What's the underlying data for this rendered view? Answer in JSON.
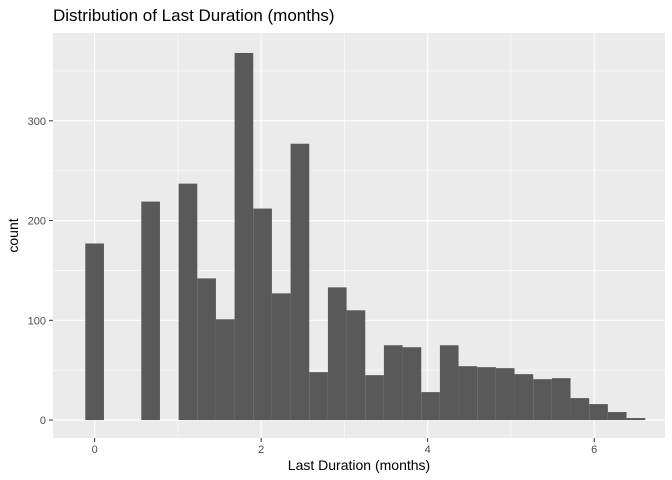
{
  "chart_data": {
    "type": "bar",
    "title": "Distribution of Last Duration (months)",
    "xlabel": "Last Duration (months)",
    "ylabel": "count",
    "xlim": [
      -0.5,
      6.85
    ],
    "ylim": [
      -18,
      388
    ],
    "x_ticks": [
      0,
      2,
      4,
      6
    ],
    "y_ticks": [
      0,
      100,
      200,
      300
    ],
    "x_tick_labels": [
      "0",
      "2",
      "4",
      "6"
    ],
    "y_tick_labels": [
      "0",
      "100",
      "200",
      "300"
    ],
    "bin_width": 0.2241,
    "bins": [
      {
        "x0": -0.1121,
        "x1": 0.1121,
        "count": 177
      },
      {
        "x0": 0.1121,
        "x1": 0.3362,
        "count": 0
      },
      {
        "x0": 0.3362,
        "x1": 0.5603,
        "count": 0
      },
      {
        "x0": 0.5603,
        "x1": 0.7845,
        "count": 219
      },
      {
        "x0": 0.7845,
        "x1": 1.0086,
        "count": 0
      },
      {
        "x0": 1.0086,
        "x1": 1.2328,
        "count": 237
      },
      {
        "x0": 1.2328,
        "x1": 1.4569,
        "count": 142
      },
      {
        "x0": 1.4569,
        "x1": 1.681,
        "count": 101
      },
      {
        "x0": 1.681,
        "x1": 1.9052,
        "count": 368
      },
      {
        "x0": 1.9052,
        "x1": 2.1293,
        "count": 212
      },
      {
        "x0": 2.1293,
        "x1": 2.3534,
        "count": 127
      },
      {
        "x0": 2.3534,
        "x1": 2.5776,
        "count": 277
      },
      {
        "x0": 2.5776,
        "x1": 2.8017,
        "count": 48
      },
      {
        "x0": 2.8017,
        "x1": 3.0259,
        "count": 133
      },
      {
        "x0": 3.0259,
        "x1": 3.25,
        "count": 110
      },
      {
        "x0": 3.25,
        "x1": 3.4741,
        "count": 45
      },
      {
        "x0": 3.4741,
        "x1": 3.6983,
        "count": 75
      },
      {
        "x0": 3.6983,
        "x1": 3.9224,
        "count": 73
      },
      {
        "x0": 3.9224,
        "x1": 4.1466,
        "count": 28
      },
      {
        "x0": 4.1466,
        "x1": 4.3707,
        "count": 75
      },
      {
        "x0": 4.3707,
        "x1": 4.5948,
        "count": 54
      },
      {
        "x0": 4.5948,
        "x1": 4.819,
        "count": 53
      },
      {
        "x0": 4.819,
        "x1": 5.0431,
        "count": 52
      },
      {
        "x0": 5.0431,
        "x1": 5.2672,
        "count": 46
      },
      {
        "x0": 5.2672,
        "x1": 5.4914,
        "count": 41
      },
      {
        "x0": 5.4914,
        "x1": 5.7155,
        "count": 42
      },
      {
        "x0": 5.7155,
        "x1": 5.9397,
        "count": 22
      },
      {
        "x0": 5.9397,
        "x1": 6.1638,
        "count": 16
      },
      {
        "x0": 6.1638,
        "x1": 6.3879,
        "count": 8
      },
      {
        "x0": 6.3879,
        "x1": 6.6121,
        "count": 2
      }
    ],
    "grid": true,
    "legend": "none",
    "colors": {
      "panel_background": "#ebebeb",
      "grid_major": "#ffffff",
      "bar_fill": "#595959",
      "tick": "#333333"
    }
  }
}
